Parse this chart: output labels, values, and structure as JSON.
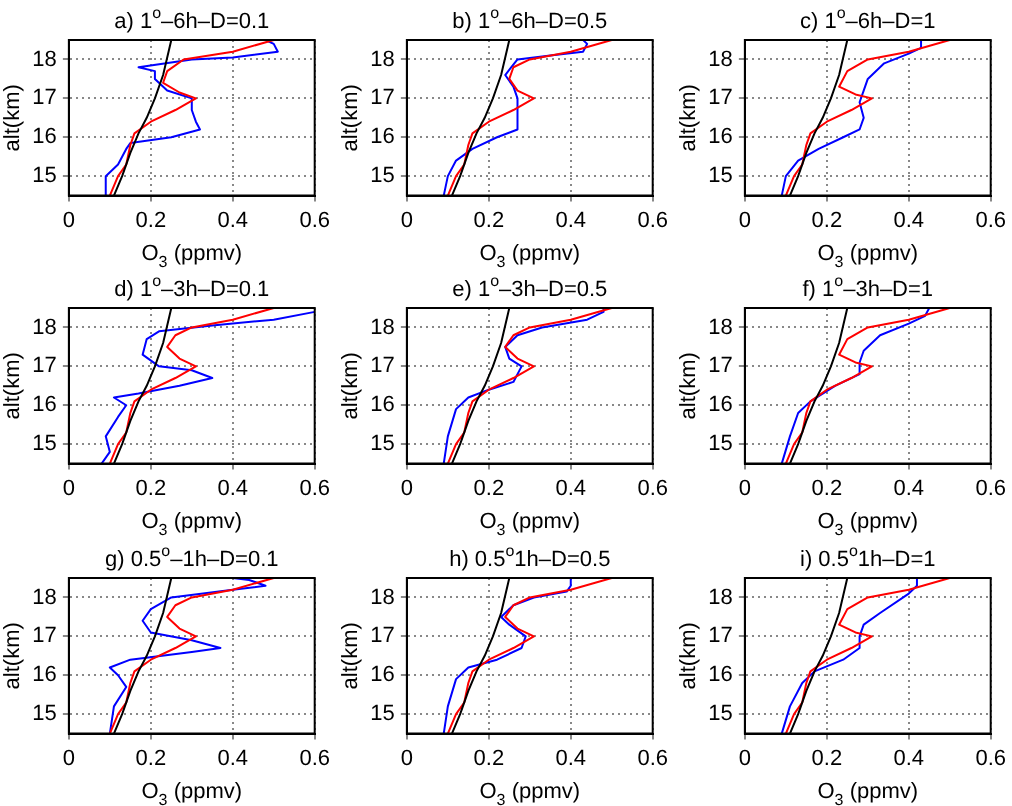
{
  "chart_data": [
    {
      "type": "line",
      "title": "a) 1$^{o}$–6h–D=0.1",
      "xlabel": "O$_{3}$ (ppmv)",
      "ylabel": "alt(km)",
      "xlim": [
        0,
        0.6
      ],
      "xticks": [
        0,
        0.2,
        0.4,
        0.6
      ],
      "ylim": [
        14.5,
        18.5
      ],
      "yticks": [
        15,
        16,
        17,
        18
      ],
      "grid": true,
      "legend": false,
      "series": [
        {
          "color": "#000000",
          "x": [
            0.11,
            0.13,
            0.15,
            0.17,
            0.19,
            0.21,
            0.23,
            0.25
          ],
          "values": [
            14.5,
            15,
            15.6,
            16.1,
            16.5,
            17,
            17.6,
            18.5
          ]
        },
        {
          "color": "#ff0000",
          "x": [
            0.1,
            0.12,
            0.14,
            0.15,
            0.16,
            0.2,
            0.26,
            0.31,
            0.27,
            0.23,
            0.24,
            0.28,
            0.4,
            0.5
          ],
          "values": [
            14.5,
            15,
            15.3,
            15.8,
            16.1,
            16.4,
            16.7,
            17,
            17.15,
            17.4,
            17.7,
            18,
            18.2,
            18.5
          ]
        },
        {
          "color": "#0000ff",
          "x": [
            0.09,
            0.09,
            0.12,
            0.14,
            0.15,
            0.25,
            0.32,
            0.31,
            0.3,
            0.3,
            0.24,
            0.21,
            0.21,
            0.17,
            0.3,
            0.4,
            0.51,
            0.5,
            0.48
          ],
          "values": [
            14.5,
            15,
            15.3,
            15.7,
            15.85,
            16,
            16.2,
            16.4,
            16.7,
            17,
            17.2,
            17.5,
            17.7,
            17.8,
            18,
            18.05,
            18.2,
            18.4,
            18.5
          ]
        }
      ]
    },
    {
      "type": "line",
      "title": "b) 1$^{o}$–6h–D=0.5",
      "xlabel": "O$_{3}$ (ppmv)",
      "ylabel": "alt(km)",
      "xlim": [
        0,
        0.6
      ],
      "xticks": [
        0,
        0.2,
        0.4,
        0.6
      ],
      "ylim": [
        14.5,
        18.5
      ],
      "yticks": [
        15,
        16,
        17,
        18
      ],
      "grid": true,
      "legend": false,
      "series": [
        {
          "color": "#000000",
          "x": [
            0.11,
            0.13,
            0.15,
            0.17,
            0.19,
            0.21,
            0.23,
            0.25
          ],
          "values": [
            14.5,
            15,
            15.6,
            16.1,
            16.5,
            17,
            17.6,
            18.5
          ]
        },
        {
          "color": "#ff0000",
          "x": [
            0.1,
            0.12,
            0.14,
            0.15,
            0.16,
            0.2,
            0.26,
            0.31,
            0.27,
            0.25,
            0.26,
            0.3,
            0.4,
            0.5
          ],
          "values": [
            14.5,
            15,
            15.3,
            15.8,
            16.1,
            16.4,
            16.7,
            17,
            17.2,
            17.5,
            17.8,
            18,
            18.2,
            18.5
          ]
        },
        {
          "color": "#0000ff",
          "x": [
            0.09,
            0.1,
            0.12,
            0.16,
            0.22,
            0.27,
            0.27,
            0.26,
            0.24,
            0.27,
            0.35,
            0.43,
            0.44,
            0.43
          ],
          "values": [
            14.5,
            15,
            15.4,
            15.7,
            16,
            16.2,
            17,
            17.3,
            17.6,
            18,
            18.1,
            18.2,
            18.4,
            18.5
          ]
        }
      ]
    },
    {
      "type": "line",
      "title": "c) 1$^{o}$–6h–D=1",
      "xlabel": "O$_{3}$ (ppmv)",
      "ylabel": "alt(km)",
      "xlim": [
        0,
        0.6
      ],
      "xticks": [
        0,
        0.2,
        0.4,
        0.6
      ],
      "ylim": [
        14.5,
        18.5
      ],
      "yticks": [
        15,
        16,
        17,
        18
      ],
      "grid": true,
      "legend": false,
      "series": [
        {
          "color": "#000000",
          "x": [
            0.11,
            0.13,
            0.15,
            0.17,
            0.19,
            0.21,
            0.23,
            0.25
          ],
          "values": [
            14.5,
            15,
            15.6,
            16.1,
            16.5,
            17,
            17.6,
            18.5
          ]
        },
        {
          "color": "#ff0000",
          "x": [
            0.1,
            0.12,
            0.14,
            0.15,
            0.16,
            0.2,
            0.26,
            0.31,
            0.27,
            0.23,
            0.25,
            0.3,
            0.4,
            0.5
          ],
          "values": [
            14.5,
            15,
            15.3,
            15.8,
            16.1,
            16.4,
            16.7,
            17,
            17.1,
            17.3,
            17.7,
            18,
            18.2,
            18.5
          ]
        },
        {
          "color": "#0000ff",
          "x": [
            0.09,
            0.1,
            0.13,
            0.18,
            0.24,
            0.28,
            0.29,
            0.28,
            0.29,
            0.3,
            0.34,
            0.4,
            0.43,
            0.43
          ],
          "values": [
            14.5,
            15,
            15.4,
            15.7,
            16,
            16.2,
            16.5,
            16.9,
            17.2,
            17.5,
            17.9,
            18.15,
            18.3,
            18.5
          ]
        }
      ]
    },
    {
      "type": "line",
      "title": "d) 1$^{o}$–3h–D=0.1",
      "xlabel": "O$_{3}$ (ppmv)",
      "ylabel": "alt(km)",
      "xlim": [
        0,
        0.6
      ],
      "xticks": [
        0,
        0.2,
        0.4,
        0.6
      ],
      "ylim": [
        14.5,
        18.5
      ],
      "yticks": [
        15,
        16,
        17,
        18
      ],
      "grid": true,
      "legend": false,
      "series": [
        {
          "color": "#000000",
          "x": [
            0.11,
            0.13,
            0.15,
            0.17,
            0.19,
            0.21,
            0.23,
            0.25
          ],
          "values": [
            14.5,
            15,
            15.6,
            16.1,
            16.5,
            17,
            17.6,
            18.5
          ]
        },
        {
          "color": "#ff0000",
          "x": [
            0.1,
            0.12,
            0.14,
            0.15,
            0.16,
            0.2,
            0.26,
            0.31,
            0.27,
            0.24,
            0.26,
            0.3,
            0.4,
            0.5
          ],
          "values": [
            14.5,
            15,
            15.3,
            15.8,
            16.1,
            16.4,
            16.7,
            17,
            17.2,
            17.5,
            17.8,
            18,
            18.2,
            18.5
          ]
        },
        {
          "color": "#0000ff",
          "x": [
            0.08,
            0.1,
            0.09,
            0.12,
            0.14,
            0.11,
            0.17,
            0.27,
            0.35,
            0.3,
            0.22,
            0.18,
            0.19,
            0.22,
            0.35,
            0.5,
            0.6
          ],
          "values": [
            14.5,
            14.8,
            15.2,
            15.7,
            16,
            16.2,
            16.3,
            16.5,
            16.7,
            16.9,
            17,
            17.3,
            17.7,
            17.9,
            18.05,
            18.2,
            18.4
          ]
        }
      ]
    },
    {
      "type": "line",
      "title": "e) 1$^{o}$–3h–D=0.5",
      "xlabel": "O$_{3}$ (ppmv)",
      "ylabel": "alt(km)",
      "xlim": [
        0,
        0.6
      ],
      "xticks": [
        0,
        0.2,
        0.4,
        0.6
      ],
      "ylim": [
        14.5,
        18.5
      ],
      "yticks": [
        15,
        16,
        17,
        18
      ],
      "grid": true,
      "legend": false,
      "series": [
        {
          "color": "#000000",
          "x": [
            0.11,
            0.13,
            0.15,
            0.17,
            0.19,
            0.21,
            0.23,
            0.25
          ],
          "values": [
            14.5,
            15,
            15.6,
            16.1,
            16.5,
            17,
            17.6,
            18.5
          ]
        },
        {
          "color": "#ff0000",
          "x": [
            0.1,
            0.12,
            0.14,
            0.15,
            0.16,
            0.2,
            0.26,
            0.31,
            0.27,
            0.24,
            0.26,
            0.3,
            0.4,
            0.5
          ],
          "values": [
            14.5,
            15,
            15.3,
            15.8,
            16.1,
            16.4,
            16.7,
            17,
            17.2,
            17.5,
            17.8,
            18,
            18.2,
            18.5
          ]
        },
        {
          "color": "#0000ff",
          "x": [
            0.09,
            0.1,
            0.12,
            0.15,
            0.2,
            0.26,
            0.28,
            0.25,
            0.24,
            0.27,
            0.33,
            0.44,
            0.48,
            0.48
          ],
          "values": [
            14.5,
            15.2,
            15.9,
            16.2,
            16.4,
            16.6,
            17,
            17.2,
            17.5,
            17.8,
            18,
            18.2,
            18.4,
            18.5
          ]
        }
      ]
    },
    {
      "type": "line",
      "title": "f) 1$^{o}$–3h–D=1",
      "xlabel": "O$_{3}$ (ppmv)",
      "ylabel": "alt(km)",
      "xlim": [
        0,
        0.6
      ],
      "xticks": [
        0,
        0.2,
        0.4,
        0.6
      ],
      "ylim": [
        14.5,
        18.5
      ],
      "yticks": [
        15,
        16,
        17,
        18
      ],
      "grid": true,
      "legend": false,
      "series": [
        {
          "color": "#000000",
          "x": [
            0.11,
            0.13,
            0.15,
            0.17,
            0.19,
            0.21,
            0.23,
            0.25
          ],
          "values": [
            14.5,
            15,
            15.6,
            16.1,
            16.5,
            17,
            17.6,
            18.5
          ]
        },
        {
          "color": "#ff0000",
          "x": [
            0.1,
            0.12,
            0.14,
            0.15,
            0.16,
            0.2,
            0.26,
            0.31,
            0.27,
            0.23,
            0.25,
            0.3,
            0.4,
            0.5
          ],
          "values": [
            14.5,
            15,
            15.3,
            15.8,
            16.1,
            16.4,
            16.7,
            17,
            17.1,
            17.3,
            17.7,
            18,
            18.2,
            18.5
          ]
        },
        {
          "color": "#0000ff",
          "x": [
            0.09,
            0.11,
            0.13,
            0.16,
            0.22,
            0.28,
            0.28,
            0.29,
            0.33,
            0.4,
            0.44,
            0.45
          ],
          "values": [
            14.5,
            15.2,
            15.8,
            16.1,
            16.5,
            16.8,
            17.1,
            17.4,
            17.8,
            18.1,
            18.3,
            18.5
          ]
        }
      ]
    },
    {
      "type": "line",
      "title": "g) 0.5$^{o}$–1h–D=0.1",
      "xlabel": "O$_{3}$ (ppmv)",
      "ylabel": "alt(km)",
      "xlim": [
        0,
        0.6
      ],
      "xticks": [
        0,
        0.2,
        0.4,
        0.6
      ],
      "ylim": [
        14.5,
        18.5
      ],
      "yticks": [
        15,
        16,
        17,
        18
      ],
      "grid": true,
      "legend": false,
      "series": [
        {
          "color": "#000000",
          "x": [
            0.11,
            0.13,
            0.15,
            0.17,
            0.19,
            0.21,
            0.23,
            0.25
          ],
          "values": [
            14.5,
            15,
            15.6,
            16.1,
            16.5,
            17,
            17.6,
            18.5
          ]
        },
        {
          "color": "#ff0000",
          "x": [
            0.1,
            0.12,
            0.14,
            0.15,
            0.16,
            0.2,
            0.26,
            0.31,
            0.27,
            0.24,
            0.26,
            0.3,
            0.4,
            0.5
          ],
          "values": [
            14.5,
            15,
            15.3,
            15.8,
            16.1,
            16.4,
            16.7,
            17,
            17.2,
            17.5,
            17.8,
            18,
            18.2,
            18.5
          ]
        },
        {
          "color": "#0000ff",
          "x": [
            0.1,
            0.11,
            0.14,
            0.12,
            0.1,
            0.15,
            0.3,
            0.37,
            0.3,
            0.2,
            0.18,
            0.2,
            0.25,
            0.4,
            0.48,
            0.44,
            0.4
          ],
          "values": [
            14.5,
            15.2,
            15.7,
            16,
            16.2,
            16.4,
            16.6,
            16.7,
            16.9,
            17.1,
            17.4,
            17.7,
            18,
            18.2,
            18.3,
            18.45,
            18.5
          ]
        }
      ]
    },
    {
      "type": "line",
      "title": "h) 0.5$^{o}$1h–D=0.5",
      "xlabel": "O$_{3}$ (ppmv)",
      "ylabel": "alt(km)",
      "xlim": [
        0,
        0.6
      ],
      "xticks": [
        0,
        0.2,
        0.4,
        0.6
      ],
      "ylim": [
        14.5,
        18.5
      ],
      "yticks": [
        15,
        16,
        17,
        18
      ],
      "grid": true,
      "legend": false,
      "series": [
        {
          "color": "#000000",
          "x": [
            0.11,
            0.13,
            0.15,
            0.17,
            0.19,
            0.21,
            0.23,
            0.25
          ],
          "values": [
            14.5,
            15,
            15.6,
            16.1,
            16.5,
            17,
            17.6,
            18.5
          ]
        },
        {
          "color": "#ff0000",
          "x": [
            0.1,
            0.12,
            0.14,
            0.15,
            0.16,
            0.2,
            0.26,
            0.31,
            0.27,
            0.24,
            0.26,
            0.3,
            0.4,
            0.5
          ],
          "values": [
            14.5,
            15,
            15.3,
            15.8,
            16.1,
            16.4,
            16.7,
            17,
            17.2,
            17.5,
            17.8,
            18,
            18.2,
            18.5
          ]
        },
        {
          "color": "#0000ff",
          "x": [
            0.09,
            0.1,
            0.12,
            0.15,
            0.22,
            0.28,
            0.29,
            0.25,
            0.23,
            0.26,
            0.31,
            0.39,
            0.4,
            0.4
          ],
          "values": [
            14.5,
            15.2,
            15.9,
            16.2,
            16.4,
            16.7,
            17,
            17.3,
            17.5,
            17.8,
            18,
            18.15,
            18.3,
            18.5
          ]
        }
      ]
    },
    {
      "type": "line",
      "title": "i) 0.5$^{o}$1h–D=1",
      "xlabel": "O$_{3}$ (ppmv)",
      "ylabel": "alt(km)",
      "xlim": [
        0,
        0.6
      ],
      "xticks": [
        0,
        0.2,
        0.4,
        0.6
      ],
      "ylim": [
        14.5,
        18.5
      ],
      "yticks": [
        15,
        16,
        17,
        18
      ],
      "grid": true,
      "legend": false,
      "series": [
        {
          "color": "#000000",
          "x": [
            0.11,
            0.13,
            0.15,
            0.17,
            0.19,
            0.21,
            0.23,
            0.25
          ],
          "values": [
            14.5,
            15,
            15.6,
            16.1,
            16.5,
            17,
            17.6,
            18.5
          ]
        },
        {
          "color": "#ff0000",
          "x": [
            0.1,
            0.12,
            0.14,
            0.15,
            0.16,
            0.2,
            0.26,
            0.31,
            0.27,
            0.23,
            0.25,
            0.3,
            0.4,
            0.5
          ],
          "values": [
            14.5,
            15,
            15.3,
            15.8,
            16.1,
            16.4,
            16.7,
            17,
            17.1,
            17.3,
            17.7,
            18,
            18.2,
            18.5
          ]
        },
        {
          "color": "#0000ff",
          "x": [
            0.09,
            0.11,
            0.14,
            0.17,
            0.24,
            0.28,
            0.28,
            0.29,
            0.33,
            0.4,
            0.42,
            0.42
          ],
          "values": [
            14.5,
            15.2,
            15.8,
            16.1,
            16.4,
            16.7,
            17,
            17.3,
            17.6,
            18.1,
            18.3,
            18.5
          ]
        }
      ]
    }
  ]
}
